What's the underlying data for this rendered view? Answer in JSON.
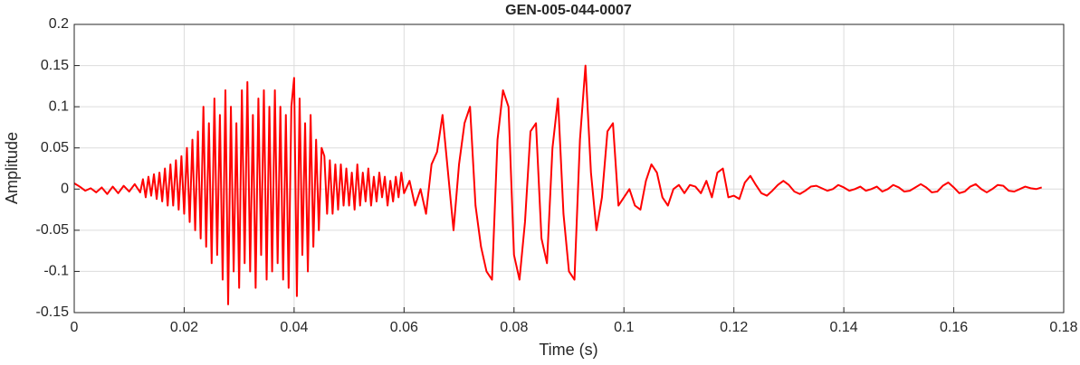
{
  "chart_data": {
    "type": "line",
    "title": "GEN-005-044-0007",
    "x_label": "Time (s)",
    "y_label": "Amplitude",
    "xlim": [
      0,
      0.18
    ],
    "xticks": [
      0,
      0.02,
      0.04,
      0.06,
      0.08,
      0.1,
      0.12,
      0.14,
      0.16,
      0.18
    ],
    "ylim": [
      -0.15,
      0.2
    ],
    "yticks": [
      -0.15,
      -0.1,
      -0.05,
      0,
      0.05,
      0.1,
      0.15,
      0.2
    ],
    "grid": true,
    "x": [
      0,
      0.001,
      0.002,
      0.003,
      0.004,
      0.005,
      0.006,
      0.007,
      0.008,
      0.009,
      0.01,
      0.011,
      0.012,
      0.0125,
      0.013,
      0.0135,
      0.014,
      0.0145,
      0.015,
      0.0155,
      0.016,
      0.0165,
      0.017,
      0.0175,
      0.018,
      0.0185,
      0.019,
      0.0195,
      0.02,
      0.0205,
      0.021,
      0.0215,
      0.022,
      0.0225,
      0.023,
      0.0235,
      0.024,
      0.0245,
      0.025,
      0.0255,
      0.026,
      0.0265,
      0.027,
      0.0275,
      0.028,
      0.0285,
      0.029,
      0.0295,
      0.03,
      0.0305,
      0.031,
      0.0315,
      0.032,
      0.0325,
      0.033,
      0.0335,
      0.034,
      0.0345,
      0.035,
      0.0355,
      0.036,
      0.0365,
      0.037,
      0.0375,
      0.038,
      0.0385,
      0.039,
      0.0395,
      0.04,
      0.0405,
      0.041,
      0.0415,
      0.042,
      0.0425,
      0.043,
      0.0435,
      0.044,
      0.0445,
      0.045,
      0.0455,
      0.046,
      0.0465,
      0.047,
      0.0475,
      0.048,
      0.0485,
      0.049,
      0.0495,
      0.05,
      0.0505,
      0.051,
      0.0515,
      0.052,
      0.0525,
      0.053,
      0.0535,
      0.054,
      0.0545,
      0.055,
      0.0555,
      0.056,
      0.0565,
      0.057,
      0.0575,
      0.058,
      0.0585,
      0.059,
      0.0595,
      0.06,
      0.061,
      0.062,
      0.063,
      0.064,
      0.065,
      0.066,
      0.067,
      0.068,
      0.069,
      0.07,
      0.071,
      0.072,
      0.073,
      0.074,
      0.075,
      0.076,
      0.077,
      0.078,
      0.079,
      0.08,
      0.081,
      0.082,
      0.083,
      0.084,
      0.085,
      0.086,
      0.087,
      0.088,
      0.089,
      0.09,
      0.091,
      0.092,
      0.093,
      0.094,
      0.095,
      0.096,
      0.097,
      0.098,
      0.099,
      0.1,
      0.101,
      0.102,
      0.103,
      0.104,
      0.105,
      0.106,
      0.107,
      0.108,
      0.109,
      0.11,
      0.111,
      0.112,
      0.113,
      0.114,
      0.115,
      0.116,
      0.117,
      0.118,
      0.119,
      0.12,
      0.121,
      0.122,
      0.123,
      0.124,
      0.125,
      0.126,
      0.127,
      0.128,
      0.129,
      0.13,
      0.131,
      0.132,
      0.133,
      0.134,
      0.135,
      0.136,
      0.137,
      0.138,
      0.139,
      0.14,
      0.141,
      0.142,
      0.143,
      0.144,
      0.145,
      0.146,
      0.147,
      0.148,
      0.149,
      0.15,
      0.151,
      0.152,
      0.153,
      0.154,
      0.155,
      0.156,
      0.157,
      0.158,
      0.159,
      0.16,
      0.161,
      0.162,
      0.163,
      0.164,
      0.165,
      0.166,
      0.167,
      0.168,
      0.169,
      0.17,
      0.171,
      0.172,
      0.173,
      0.174,
      0.175,
      0.176
    ],
    "series": [
      {
        "color": "#ff0000",
        "values": [
          0.007,
          0.003,
          -0.002,
          0.001,
          -0.004,
          0.002,
          -0.006,
          0.003,
          -0.005,
          0.004,
          -0.003,
          0.006,
          -0.004,
          0.012,
          -0.01,
          0.015,
          -0.008,
          0.018,
          -0.012,
          0.02,
          -0.015,
          0.025,
          -0.02,
          0.03,
          -0.02,
          0.035,
          -0.025,
          0.04,
          -0.03,
          0.05,
          -0.04,
          0.06,
          -0.05,
          0.07,
          -0.06,
          0.1,
          -0.07,
          0.08,
          -0.09,
          0.11,
          -0.08,
          0.09,
          -0.11,
          0.12,
          -0.14,
          0.1,
          -0.1,
          0.08,
          -0.12,
          0.12,
          -0.09,
          0.13,
          -0.1,
          0.09,
          -0.12,
          0.11,
          -0.08,
          0.12,
          -0.11,
          0.1,
          -0.1,
          0.12,
          -0.09,
          0.1,
          -0.11,
          0.09,
          -0.12,
          0.1,
          0.135,
          -0.13,
          0.11,
          -0.08,
          0.08,
          -0.1,
          0.09,
          -0.07,
          0.06,
          -0.05,
          0.05,
          0.04,
          -0.03,
          0.035,
          -0.03,
          0.03,
          -0.025,
          0.03,
          -0.02,
          0.025,
          -0.02,
          0.02,
          -0.025,
          0.03,
          -0.02,
          0.02,
          -0.015,
          0.025,
          -0.02,
          0.015,
          -0.015,
          0.02,
          -0.01,
          0.015,
          -0.02,
          0.01,
          -0.015,
          0.015,
          -0.01,
          0.02,
          -0.005,
          0.01,
          -0.02,
          0.0,
          -0.03,
          0.03,
          0.045,
          0.09,
          0.02,
          -0.05,
          0.03,
          0.08,
          0.1,
          -0.02,
          -0.07,
          -0.1,
          -0.11,
          0.06,
          0.12,
          0.1,
          -0.08,
          -0.11,
          -0.04,
          0.07,
          0.08,
          -0.06,
          -0.09,
          0.05,
          0.11,
          -0.03,
          -0.1,
          -0.11,
          0.06,
          0.15,
          0.02,
          -0.05,
          -0.01,
          0.07,
          0.08,
          -0.02,
          -0.01,
          0.0,
          -0.02,
          -0.025,
          0.01,
          0.03,
          0.02,
          -0.01,
          -0.02,
          0.0,
          0.005,
          -0.005,
          0.005,
          0.003,
          -0.005,
          0.01,
          -0.01,
          0.02,
          0.025,
          -0.01,
          -0.008,
          -0.012,
          0.008,
          0.016,
          0.005,
          -0.005,
          -0.008,
          -0.002,
          0.005,
          0.01,
          0.005,
          -0.003,
          -0.006,
          -0.002,
          0.003,
          0.004,
          0.001,
          -0.002,
          0.0,
          0.005,
          0.002,
          -0.002,
          0.0,
          0.003,
          -0.002,
          0.0,
          0.003,
          -0.003,
          0.0,
          0.005,
          0.002,
          -0.003,
          -0.002,
          0.002,
          0.006,
          0.002,
          -0.004,
          -0.003,
          0.004,
          0.008,
          0.002,
          -0.005,
          -0.003,
          0.003,
          0.006,
          0.0,
          -0.004,
          0.0,
          0.005,
          0.004,
          -0.002,
          -0.003,
          0.0,
          0.003,
          0.001,
          0.0,
          0.002
        ]
      }
    ]
  }
}
